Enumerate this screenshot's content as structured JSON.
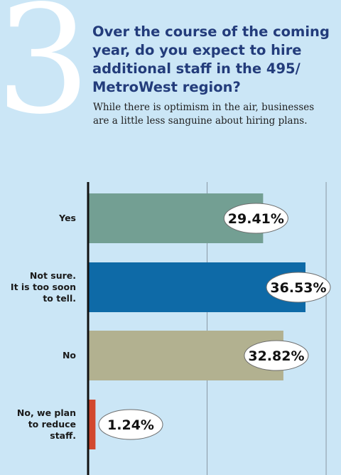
{
  "header": {
    "number": "3",
    "title": "Over the course of the coming year, do you expect to hire additional staff in the 495/ MetroWest region?",
    "subtitle": "While there is optimism in the air, businesses are a little less sanguine about hiring plans."
  },
  "chart_data": {
    "type": "bar",
    "orientation": "horizontal",
    "categories": [
      [
        "Yes"
      ],
      [
        "Not sure.",
        "It is too soon",
        "to tell."
      ],
      [
        "No"
      ],
      [
        "No, we plan",
        "to reduce",
        "staff."
      ]
    ],
    "values": [
      29.41,
      36.53,
      32.82,
      1.24
    ],
    "value_labels": [
      "29.41%",
      "36.53%",
      "32.82%",
      "1.24%"
    ],
    "colors": [
      "#739f93",
      "#0e6aa7",
      "#b2b190",
      "#d2482e"
    ],
    "xlim": [
      0,
      40
    ],
    "grid": true
  }
}
